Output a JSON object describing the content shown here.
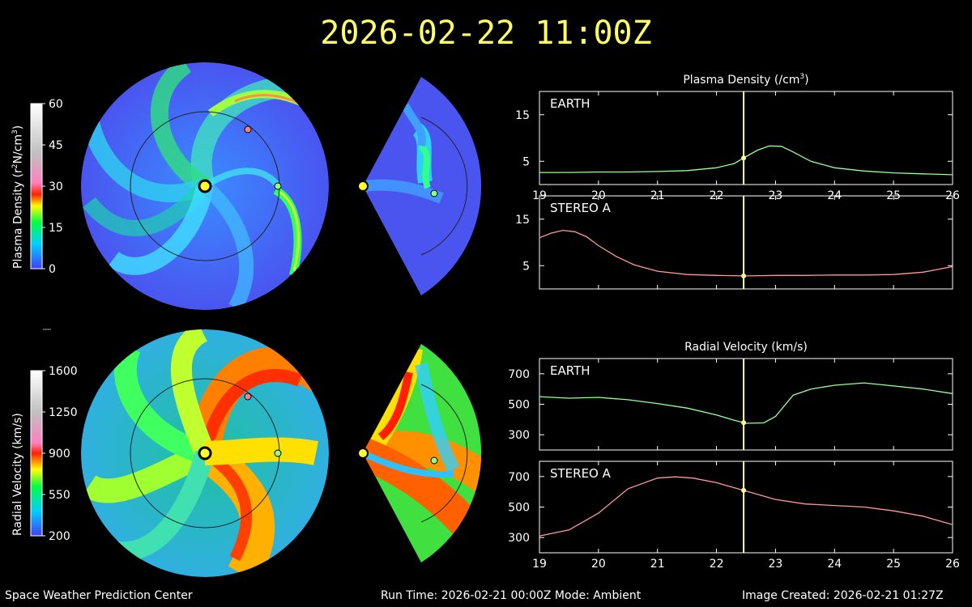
{
  "timestamp": "2026-02-22 11:00Z",
  "colorbars": [
    {
      "title_main": "Plasma Density (r",
      "title_sup": "2",
      "title_tail": "N/cm",
      "title_sup2": "3",
      "title_end": ")",
      "ticks": [
        "60",
        "45",
        "30",
        "15",
        "0"
      ]
    },
    {
      "title_main": "Radial Velocity (km/s)",
      "ticks": [
        "1600",
        "1250",
        "900",
        "550",
        "200"
      ]
    }
  ],
  "footer": {
    "left": "Space Weather Prediction Center",
    "center": "Run Time: 2026-02-21 00:00Z  Mode: Ambient",
    "right": "Image Created: 2026-02-21 01:27Z"
  },
  "colors": {
    "earth": "#99ff99",
    "stereo_a": "#ff9999",
    "cursor": "#ffff99",
    "title": "#ffff66"
  },
  "chart_data": [
    {
      "type": "line",
      "title": "Plasma Density (/cm",
      "title_sup": "3",
      "title_end": ")",
      "panel_label": "EARTH",
      "xlim": [
        19,
        26
      ],
      "ylim": [
        0,
        20
      ],
      "yticks": [
        5,
        15
      ],
      "xticks": [
        19,
        20,
        21,
        22,
        23,
        24,
        25,
        26
      ],
      "cursor_x": 22.46,
      "series": [
        {
          "name": "EARTH",
          "x": [
            19,
            19.5,
            20,
            20.5,
            21,
            21.5,
            22,
            22.3,
            22.5,
            22.7,
            22.9,
            23.1,
            23.3,
            23.6,
            24,
            24.5,
            25,
            25.5,
            26
          ],
          "y": [
            2.6,
            2.6,
            2.7,
            2.7,
            2.8,
            3.0,
            3.6,
            4.5,
            6.0,
            7.4,
            8.3,
            8.2,
            7.0,
            5.0,
            3.6,
            2.9,
            2.5,
            2.3,
            2.1
          ]
        }
      ]
    },
    {
      "type": "line",
      "panel_label": "STEREO A",
      "xlim": [
        19,
        26
      ],
      "ylim": [
        0,
        20
      ],
      "yticks": [
        5,
        15
      ],
      "cursor_x": 22.46,
      "series": [
        {
          "name": "STEREO A",
          "x": [
            19,
            19.2,
            19.4,
            19.6,
            19.8,
            20,
            20.3,
            20.6,
            21,
            21.5,
            22,
            22.5,
            23,
            23.5,
            24,
            24.5,
            25,
            25.5,
            26
          ],
          "y": [
            11.0,
            12.0,
            12.6,
            12.3,
            11.2,
            9.3,
            7.0,
            5.2,
            3.8,
            3.1,
            2.9,
            2.8,
            2.9,
            2.9,
            3.0,
            3.0,
            3.1,
            3.6,
            4.8
          ]
        }
      ]
    },
    {
      "type": "line",
      "title": "Radial Velocity (km/s)",
      "panel_label": "EARTH",
      "xlim": [
        19,
        26
      ],
      "ylim": [
        200,
        800
      ],
      "yticks": [
        300,
        500,
        700
      ],
      "cursor_x": 22.46,
      "series": [
        {
          "name": "EARTH",
          "x": [
            19,
            19.5,
            20,
            20.5,
            21,
            21.5,
            22,
            22.3,
            22.5,
            22.8,
            23,
            23.3,
            23.6,
            24,
            24.5,
            25,
            25.5,
            26
          ],
          "y": [
            550,
            540,
            545,
            530,
            505,
            475,
            430,
            395,
            375,
            378,
            420,
            560,
            600,
            625,
            640,
            620,
            600,
            570
          ]
        }
      ]
    },
    {
      "type": "line",
      "panel_label": "STEREO A",
      "xlim": [
        19,
        26
      ],
      "ylim": [
        200,
        800
      ],
      "yticks": [
        300,
        500,
        700
      ],
      "xticks": [
        19,
        20,
        21,
        22,
        23,
        24,
        25,
        26
      ],
      "cursor_x": 22.46,
      "series": [
        {
          "name": "STEREO A",
          "x": [
            19,
            19.5,
            20,
            20.5,
            21,
            21.3,
            21.6,
            22,
            22.5,
            23,
            23.5,
            24,
            24.5,
            25,
            25.5,
            26
          ],
          "y": [
            310,
            350,
            460,
            620,
            690,
            698,
            690,
            660,
            605,
            550,
            520,
            510,
            500,
            475,
            440,
            385
          ]
        }
      ]
    }
  ]
}
